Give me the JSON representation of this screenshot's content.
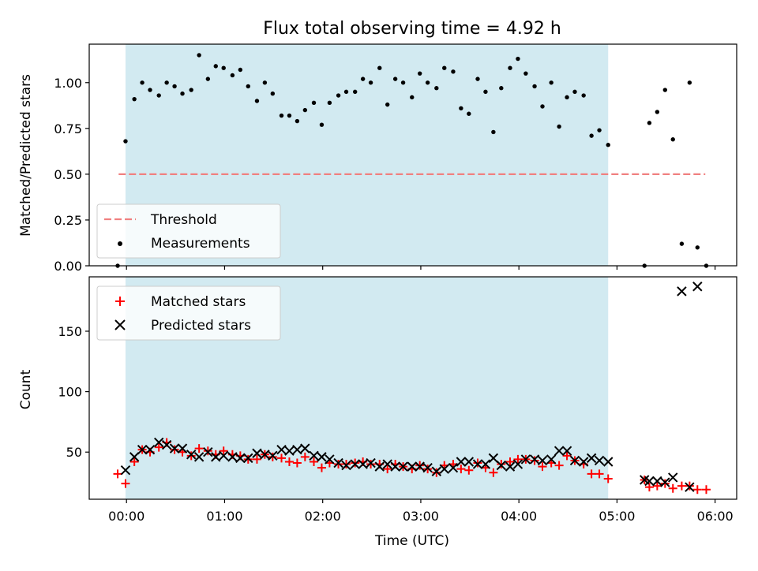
{
  "chart_data": {
    "title": "Flux total observing time = 4.92 h",
    "xlabel": "Time (UTC)",
    "xlim_hours": [
      -0.38,
      6.22
    ],
    "x_ticks": [
      {
        "value": 0,
        "label": "00:00"
      },
      {
        "value": 1,
        "label": "01:00"
      },
      {
        "value": 2,
        "label": "02:00"
      },
      {
        "value": 3,
        "label": "03:00"
      },
      {
        "value": 4,
        "label": "04:00"
      },
      {
        "value": 5,
        "label": "05:00"
      },
      {
        "value": 6,
        "label": "06:00"
      }
    ],
    "observing_span_hours": [
      -0.01,
      4.91
    ],
    "shade_color": "#add8e6",
    "panels": [
      {
        "type": "scatter",
        "ylabel": "Matched/Predicted stars",
        "ylim": [
          0,
          1.21
        ],
        "y_ticks": [
          {
            "value": 0.0,
            "label": "0.00"
          },
          {
            "value": 0.25,
            "label": "0.25"
          },
          {
            "value": 0.5,
            "label": "0.50"
          },
          {
            "value": 0.75,
            "label": "0.75"
          },
          {
            "value": 1.0,
            "label": "1.00"
          }
        ],
        "threshold": {
          "name": "Threshold",
          "value": 0.5,
          "x_range": [
            -0.08,
            5.9
          ],
          "color": "#f08080"
        },
        "legend_placement": "lower-left",
        "series": [
          {
            "name": "Measurements",
            "color": "#000000",
            "x": [
              -0.09,
              -0.01,
              0.08,
              0.16,
              0.24,
              0.33,
              0.41,
              0.49,
              0.57,
              0.66,
              0.74,
              0.83,
              0.91,
              0.99,
              1.08,
              1.16,
              1.24,
              1.33,
              1.41,
              1.49,
              1.58,
              1.66,
              1.74,
              1.82,
              1.91,
              1.99,
              2.07,
              2.16,
              2.24,
              2.33,
              2.41,
              2.49,
              2.58,
              2.66,
              2.74,
              2.82,
              2.91,
              2.99,
              3.07,
              3.16,
              3.24,
              3.33,
              3.41,
              3.49,
              3.58,
              3.66,
              3.74,
              3.82,
              3.91,
              3.99,
              4.07,
              4.16,
              4.24,
              4.33,
              4.41,
              4.49,
              4.57,
              4.66,
              4.74,
              4.82,
              4.91,
              5.28,
              5.33,
              5.41,
              5.49,
              5.57,
              5.66,
              5.74,
              5.82,
              5.91
            ],
            "y": [
              0.0,
              0.68,
              0.91,
              1.0,
              0.96,
              0.93,
              1.0,
              0.98,
              0.94,
              0.96,
              1.15,
              1.02,
              1.09,
              1.08,
              1.04,
              1.07,
              0.98,
              0.9,
              1.0,
              0.94,
              0.82,
              0.82,
              0.79,
              0.85,
              0.89,
              0.77,
              0.89,
              0.93,
              0.95,
              0.95,
              1.02,
              1.0,
              1.08,
              0.88,
              1.02,
              1.0,
              0.92,
              1.05,
              1.0,
              0.97,
              1.08,
              1.06,
              0.86,
              0.83,
              1.02,
              0.95,
              0.73,
              0.97,
              1.08,
              1.13,
              1.05,
              0.98,
              0.87,
              1.0,
              0.76,
              0.92,
              0.95,
              0.93,
              0.71,
              0.74,
              0.66,
              0.0,
              0.78,
              0.84,
              0.96,
              0.69,
              0.12,
              1.0,
              0.1,
              0.0
            ]
          }
        ]
      },
      {
        "type": "scatter",
        "ylabel": "Count",
        "ylim": [
          11,
          195
        ],
        "y_ticks": [
          {
            "value": 50,
            "label": "50"
          },
          {
            "value": 100,
            "label": "100"
          },
          {
            "value": 150,
            "label": "150"
          }
        ],
        "legend_placement": "upper-left",
        "series": [
          {
            "name": "Matched stars",
            "marker": "plus",
            "color": "#ff0000",
            "x": [
              -0.09,
              -0.01,
              0.08,
              0.16,
              0.24,
              0.33,
              0.41,
              0.49,
              0.57,
              0.66,
              0.74,
              0.83,
              0.91,
              0.99,
              1.08,
              1.16,
              1.24,
              1.33,
              1.41,
              1.49,
              1.58,
              1.66,
              1.74,
              1.82,
              1.91,
              1.99,
              2.07,
              2.16,
              2.24,
              2.33,
              2.41,
              2.49,
              2.58,
              2.66,
              2.74,
              2.82,
              2.91,
              2.99,
              3.07,
              3.16,
              3.24,
              3.33,
              3.41,
              3.49,
              3.58,
              3.66,
              3.74,
              3.82,
              3.91,
              3.99,
              4.07,
              4.16,
              4.24,
              4.33,
              4.41,
              4.49,
              4.57,
              4.66,
              4.74,
              4.82,
              4.91,
              5.28,
              5.33,
              5.41,
              5.49,
              5.57,
              5.66,
              5.74,
              5.82,
              5.91
            ],
            "y": [
              32,
              24,
              42,
              52,
              50,
              54,
              58,
              52,
              50,
              47,
              53,
              51,
              48,
              51,
              48,
              47,
              44,
              44,
              48,
              46,
              45,
              42,
              41,
              46,
              42,
              37,
              41,
              40,
              40,
              41,
              42,
              40,
              40,
              36,
              40,
              38,
              36,
              39,
              36,
              33,
              39,
              40,
              36,
              35,
              41,
              37,
              33,
              40,
              42,
              44,
              44,
              43,
              38,
              41,
              39,
              47,
              43,
              40,
              32,
              32,
              28,
              27,
              21,
              22,
              24,
              20,
              22,
              22,
              19,
              19
            ]
          },
          {
            "name": "Predicted stars",
            "marker": "x",
            "color": "#000000",
            "x": [
              -0.01,
              0.08,
              0.16,
              0.24,
              0.33,
              0.41,
              0.49,
              0.57,
              0.66,
              0.74,
              0.83,
              0.91,
              0.99,
              1.08,
              1.16,
              1.24,
              1.33,
              1.41,
              1.49,
              1.58,
              1.66,
              1.74,
              1.82,
              1.91,
              1.99,
              2.07,
              2.16,
              2.24,
              2.33,
              2.41,
              2.49,
              2.58,
              2.66,
              2.74,
              2.82,
              2.91,
              2.99,
              3.07,
              3.16,
              3.24,
              3.33,
              3.41,
              3.49,
              3.58,
              3.66,
              3.74,
              3.82,
              3.91,
              3.99,
              4.07,
              4.16,
              4.24,
              4.33,
              4.41,
              4.49,
              4.57,
              4.66,
              4.74,
              4.82,
              4.91,
              5.28,
              5.33,
              5.41,
              5.49,
              5.57,
              5.66,
              5.74,
              5.82
            ],
            "y": [
              35,
              46,
              52,
              52,
              58,
              56,
              53,
              53,
              48,
              46,
              50,
              46,
              47,
              46,
              45,
              45,
              49,
              48,
              47,
              52,
              51,
              52,
              53,
              47,
              46,
              44,
              41,
              39,
              40,
              40,
              41,
              38,
              40,
              38,
              38,
              38,
              38,
              37,
              34,
              36,
              37,
              42,
              42,
              40,
              40,
              45,
              39,
              38,
              40,
              44,
              44,
              43,
              44,
              51,
              51,
              43,
              42,
              45,
              43,
              42,
              27,
              26,
              26,
              25,
              29,
              183,
              21,
              187
            ]
          }
        ]
      }
    ]
  }
}
